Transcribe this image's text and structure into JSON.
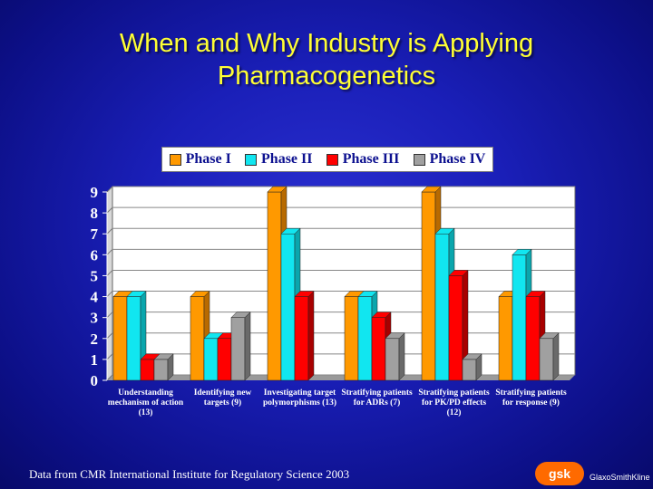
{
  "slide": {
    "title_line1": "When and Why Industry is Applying",
    "title_line2": "Pharmacogenetics",
    "footer": "Data from CMR International Institute for Regulatory Science  2003",
    "logo_mark": "gsk",
    "logo_text": "GlaxoSmithKline"
  },
  "colors": {
    "title": "#ffff33",
    "phase1": "#ff9900",
    "phase2": "#11e6f0",
    "phase3": "#ff0000",
    "phase4": "#a0a0a0",
    "axis_text": "#ffffff",
    "plot_bg": "#ffffff"
  },
  "chart_data": {
    "type": "bar",
    "title": "",
    "xlabel": "",
    "ylabel": "",
    "ylim": [
      0,
      9
    ],
    "yticks": [
      "0",
      "1",
      "2",
      "3",
      "4",
      "5",
      "6",
      "7",
      "8",
      "9"
    ],
    "legend": "top",
    "categories": [
      {
        "line1": "Understanding",
        "line2": "mechanism of action",
        "line3": "(13)"
      },
      {
        "line1": "Identifying new",
        "line2": "targets (9)",
        "line3": ""
      },
      {
        "line1": "Investigating target",
        "line2": "polymorphisms (13)",
        "line3": ""
      },
      {
        "line1": "Stratifying patients",
        "line2": "for ADRs (7)",
        "line3": ""
      },
      {
        "line1": "Stratifying patients",
        "line2": "for PK/PD effects",
        "line3": "(12)"
      },
      {
        "line1": "Stratifying patients",
        "line2": "for response (9)",
        "line3": ""
      }
    ],
    "series": [
      {
        "name": "Phase I",
        "values": [
          4,
          4,
          9,
          4,
          9,
          4
        ]
      },
      {
        "name": "Phase II",
        "values": [
          4,
          2,
          7,
          4,
          7,
          6
        ]
      },
      {
        "name": "Phase III",
        "values": [
          1,
          2,
          4,
          3,
          5,
          4
        ]
      },
      {
        "name": "Phase IV",
        "values": [
          1,
          3,
          0,
          2,
          1,
          2
        ]
      }
    ]
  }
}
